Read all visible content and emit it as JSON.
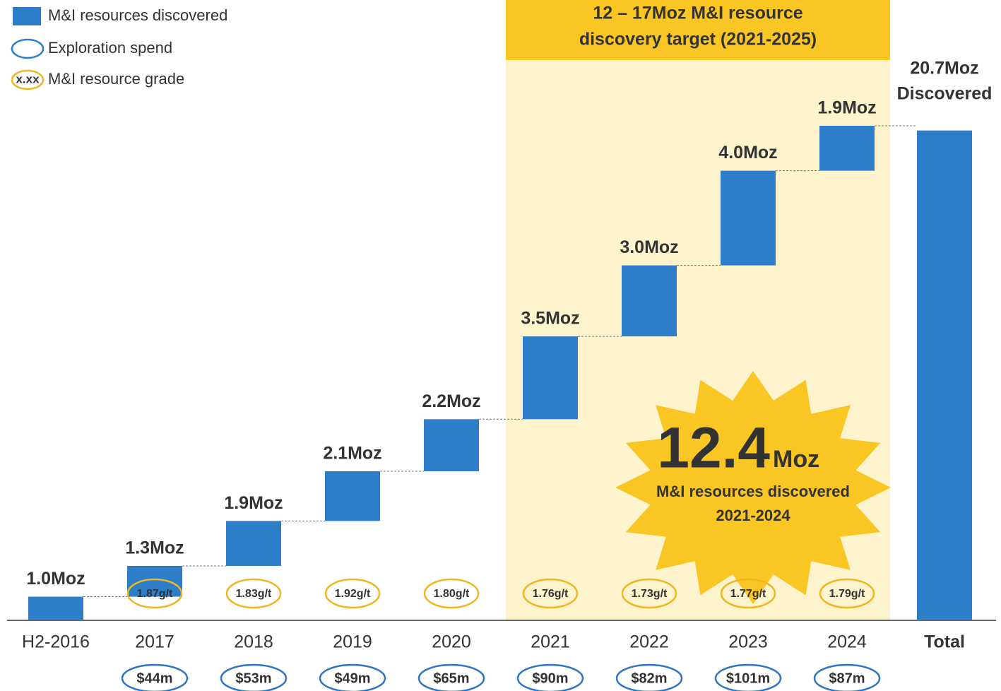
{
  "chart_data": {
    "type": "waterfall",
    "categories": [
      "H2-2016",
      "2017",
      "2018",
      "2019",
      "2020",
      "2021",
      "2022",
      "2023",
      "2024"
    ],
    "values": [
      1.0,
      1.3,
      1.9,
      2.1,
      2.2,
      3.5,
      3.0,
      4.0,
      1.9
    ],
    "value_labels": [
      "1.0Moz",
      "1.3Moz",
      "1.9Moz",
      "2.1Moz",
      "2.2Moz",
      "3.5Moz",
      "3.0Moz",
      "4.0Moz",
      "1.9Moz"
    ],
    "grades": [
      null,
      "1.87g/t",
      "1.83g/t",
      "1.92g/t",
      "1.80g/t",
      "1.76g/t",
      "1.73g/t",
      "1.77g/t",
      "1.79g/t"
    ],
    "spend": [
      null,
      "$44m",
      "$53m",
      "$49m",
      "$65m",
      "$90m",
      "$82m",
      "$101m",
      "$87m"
    ],
    "color": "#2e7dc8",
    "total": {
      "category": "Total",
      "value": 20.7,
      "value_label": "20.7Moz",
      "caption": "Discovered"
    },
    "legend": [
      "M&I resources discovered",
      "Exploration spend",
      "M&I resource grade"
    ],
    "legend_grade_sample": "x.xx",
    "target": {
      "lines": [
        "12 – 17Moz M&I resource",
        "discovery target (2021-2025)"
      ]
    },
    "starburst": {
      "number": "12.4",
      "unit": "Moz",
      "lines": [
        "M&I resources discovered",
        "2021-2024"
      ]
    }
  }
}
